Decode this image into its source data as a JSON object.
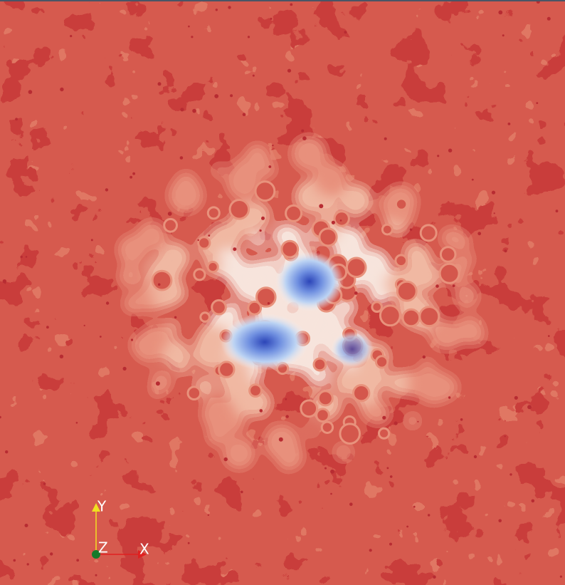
{
  "orientation_axes": {
    "y_label": "Y",
    "z_label": "Z",
    "x_label": "X"
  }
}
